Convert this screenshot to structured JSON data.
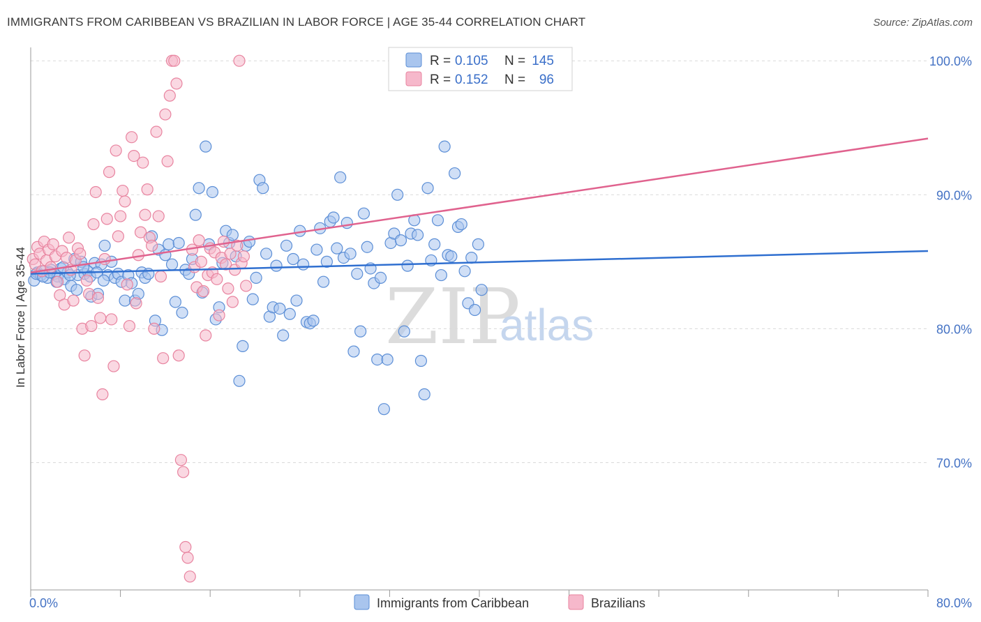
{
  "header": {
    "title": "IMMIGRANTS FROM CARIBBEAN VS BRAZILIAN IN LABOR FORCE | AGE 35-44 CORRELATION CHART",
    "source": "Source: ZipAtlas.com"
  },
  "watermark": {
    "part1": "ZIP",
    "part2": "atlas"
  },
  "legend_top": {
    "rows": [
      {
        "r_label": "R =",
        "r_value": "0.105",
        "n_label": "N =",
        "n_value": "145"
      },
      {
        "r_label": "R =",
        "r_value": "0.152",
        "n_label": "N =",
        "n_value": "96"
      }
    ]
  },
  "colors": {
    "blue_fill": "#a9c5ee",
    "blue_stroke": "#5b8ed6",
    "blue_line": "#2f6fd0",
    "pink_fill": "#f6b8cb",
    "pink_stroke": "#e8839f",
    "pink_line": "#e0628e",
    "grid": "#d9d9d9",
    "axis_text": "#4472c4"
  },
  "chart_data": {
    "type": "scatter",
    "title": "IMMIGRANTS FROM CARIBBEAN VS BRAZILIAN IN LABOR FORCE | AGE 35-44 CORRELATION CHART",
    "xlabel": "",
    "ylabel": "In Labor Force | Age 35-44",
    "xlim": [
      0,
      80
    ],
    "ylim": [
      60.5,
      101.0
    ],
    "x_tick_labels": [
      "0.0%",
      "80.0%"
    ],
    "y_ticks": [
      70,
      80,
      90,
      100
    ],
    "y_tick_labels": [
      "70.0%",
      "80.0%",
      "90.0%",
      "100.0%"
    ],
    "series": [
      {
        "name": "Immigrants from Caribbean",
        "R": 0.105,
        "N": 145,
        "trend": {
          "x": [
            0,
            80
          ],
          "y": [
            84.1,
            85.8
          ]
        },
        "points": [
          [
            0.3,
            83.6
          ],
          [
            0.6,
            84.2
          ],
          [
            0.9,
            84.0
          ],
          [
            1.2,
            84.3
          ],
          [
            1.5,
            83.8
          ],
          [
            1.8,
            84.4
          ],
          [
            2.1,
            84.1
          ],
          [
            2.4,
            83.9
          ],
          [
            2.7,
            84.5
          ],
          [
            3.0,
            83.7
          ],
          [
            3.3,
            84.2
          ],
          [
            3.6,
            83.2
          ],
          [
            3.9,
            85.2
          ],
          [
            4.2,
            84.0
          ],
          [
            4.5,
            85.0
          ],
          [
            4.8,
            84.1
          ],
          [
            5.1,
            84.3
          ],
          [
            5.4,
            82.4
          ],
          [
            5.7,
            84.9
          ],
          [
            6.0,
            82.6
          ],
          [
            6.3,
            84.8
          ],
          [
            6.6,
            86.2
          ],
          [
            6.9,
            84.0
          ],
          [
            7.2,
            85.0
          ],
          [
            7.5,
            83.8
          ],
          [
            7.8,
            84.1
          ],
          [
            8.1,
            83.5
          ],
          [
            8.4,
            82.1
          ],
          [
            8.7,
            84.0
          ],
          [
            9.0,
            83.4
          ],
          [
            9.3,
            82.1
          ],
          [
            9.6,
            82.6
          ],
          [
            9.9,
            84.2
          ],
          [
            10.2,
            83.8
          ],
          [
            10.5,
            84.1
          ],
          [
            10.8,
            86.9
          ],
          [
            11.1,
            80.6
          ],
          [
            11.4,
            85.9
          ],
          [
            11.7,
            79.9
          ],
          [
            12.0,
            85.5
          ],
          [
            12.3,
            86.3
          ],
          [
            12.6,
            84.8
          ],
          [
            12.9,
            82.0
          ],
          [
            13.2,
            86.4
          ],
          [
            13.5,
            81.2
          ],
          [
            13.8,
            84.4
          ],
          [
            14.1,
            84.1
          ],
          [
            14.4,
            85.2
          ],
          [
            14.7,
            88.5
          ],
          [
            15.0,
            90.5
          ],
          [
            15.3,
            82.7
          ],
          [
            15.6,
            93.6
          ],
          [
            15.9,
            86.3
          ],
          [
            16.2,
            90.2
          ],
          [
            16.5,
            80.7
          ],
          [
            16.8,
            81.6
          ],
          [
            17.1,
            84.9
          ],
          [
            17.4,
            87.3
          ],
          [
            17.7,
            86.4
          ],
          [
            18.0,
            87.0
          ],
          [
            18.3,
            85.4
          ],
          [
            18.6,
            76.1
          ],
          [
            18.9,
            78.7
          ],
          [
            19.2,
            86.2
          ],
          [
            19.5,
            86.5
          ],
          [
            19.8,
            82.2
          ],
          [
            20.1,
            83.8
          ],
          [
            20.4,
            91.1
          ],
          [
            20.7,
            90.5
          ],
          [
            21.0,
            85.6
          ],
          [
            21.3,
            80.9
          ],
          [
            21.6,
            81.6
          ],
          [
            21.9,
            84.7
          ],
          [
            22.2,
            81.5
          ],
          [
            22.5,
            79.5
          ],
          [
            22.8,
            86.2
          ],
          [
            23.1,
            81.1
          ],
          [
            23.4,
            85.2
          ],
          [
            23.7,
            82.1
          ],
          [
            24.0,
            87.3
          ],
          [
            24.3,
            84.8
          ],
          [
            24.6,
            80.5
          ],
          [
            24.9,
            80.4
          ],
          [
            25.2,
            80.6
          ],
          [
            25.5,
            85.9
          ],
          [
            25.8,
            87.5
          ],
          [
            26.1,
            83.5
          ],
          [
            26.4,
            85.0
          ],
          [
            26.7,
            88.0
          ],
          [
            27.0,
            88.3
          ],
          [
            27.3,
            86.0
          ],
          [
            27.6,
            91.3
          ],
          [
            27.9,
            85.3
          ],
          [
            28.2,
            87.9
          ],
          [
            28.5,
            85.6
          ],
          [
            28.8,
            78.3
          ],
          [
            29.1,
            84.1
          ],
          [
            29.4,
            79.8
          ],
          [
            29.7,
            88.6
          ],
          [
            30.0,
            86.1
          ],
          [
            30.3,
            84.5
          ],
          [
            30.6,
            83.4
          ],
          [
            30.9,
            77.7
          ],
          [
            31.2,
            83.8
          ],
          [
            31.5,
            74.0
          ],
          [
            31.8,
            77.7
          ],
          [
            32.1,
            86.4
          ],
          [
            32.4,
            87.1
          ],
          [
            32.7,
            90.0
          ],
          [
            33.0,
            86.6
          ],
          [
            33.3,
            79.8
          ],
          [
            33.6,
            84.7
          ],
          [
            33.9,
            87.1
          ],
          [
            34.2,
            88.1
          ],
          [
            34.5,
            87.0
          ],
          [
            34.8,
            77.6
          ],
          [
            35.1,
            75.1
          ],
          [
            35.4,
            90.5
          ],
          [
            35.7,
            85.1
          ],
          [
            36.0,
            86.3
          ],
          [
            36.3,
            88.1
          ],
          [
            36.6,
            84.0
          ],
          [
            36.9,
            93.6
          ],
          [
            37.2,
            85.5
          ],
          [
            37.5,
            85.4
          ],
          [
            37.8,
            91.6
          ],
          [
            38.1,
            87.6
          ],
          [
            38.4,
            87.8
          ],
          [
            38.7,
            84.3
          ],
          [
            39.0,
            81.9
          ],
          [
            39.3,
            85.3
          ],
          [
            39.6,
            81.4
          ],
          [
            39.9,
            86.3
          ],
          [
            40.2,
            82.9
          ],
          [
            0.5,
            84.1
          ],
          [
            1.1,
            83.9
          ],
          [
            1.7,
            84.2
          ],
          [
            2.3,
            83.5
          ],
          [
            2.9,
            84.6
          ],
          [
            3.5,
            84.0
          ],
          [
            4.1,
            82.9
          ],
          [
            4.7,
            84.6
          ],
          [
            5.3,
            83.9
          ],
          [
            5.9,
            84.2
          ],
          [
            6.5,
            83.6
          ]
        ]
      },
      {
        "name": "Brazilians",
        "R": 0.152,
        "N": 96,
        "trend": {
          "x": [
            0,
            80
          ],
          "y": [
            84.2,
            94.2
          ]
        },
        "points": [
          [
            0.2,
            85.2
          ],
          [
            0.4,
            84.8
          ],
          [
            0.6,
            86.1
          ],
          [
            0.8,
            85.6
          ],
          [
            1.0,
            84.3
          ],
          [
            1.2,
            86.5
          ],
          [
            1.4,
            85.1
          ],
          [
            1.6,
            85.9
          ],
          [
            1.8,
            84.6
          ],
          [
            2.0,
            86.3
          ],
          [
            2.2,
            85.4
          ],
          [
            2.4,
            83.5
          ],
          [
            2.6,
            82.5
          ],
          [
            2.8,
            85.8
          ],
          [
            3.0,
            81.8
          ],
          [
            3.2,
            85.3
          ],
          [
            3.4,
            86.8
          ],
          [
            3.6,
            84.4
          ],
          [
            3.8,
            82.1
          ],
          [
            4.0,
            85.1
          ],
          [
            4.2,
            86.0
          ],
          [
            4.4,
            85.6
          ],
          [
            4.6,
            80.0
          ],
          [
            4.8,
            78.0
          ],
          [
            5.0,
            83.6
          ],
          [
            5.2,
            82.6
          ],
          [
            5.4,
            80.2
          ],
          [
            5.6,
            87.8
          ],
          [
            5.8,
            90.2
          ],
          [
            6.0,
            82.3
          ],
          [
            6.2,
            80.8
          ],
          [
            6.4,
            75.1
          ],
          [
            6.6,
            85.2
          ],
          [
            6.8,
            88.2
          ],
          [
            7.0,
            91.7
          ],
          [
            7.2,
            80.7
          ],
          [
            7.4,
            77.2
          ],
          [
            7.6,
            93.3
          ],
          [
            7.8,
            86.9
          ],
          [
            8.0,
            88.4
          ],
          [
            8.2,
            90.3
          ],
          [
            8.4,
            89.5
          ],
          [
            8.6,
            83.3
          ],
          [
            8.8,
            80.2
          ],
          [
            9.0,
            94.3
          ],
          [
            9.2,
            92.9
          ],
          [
            9.4,
            81.9
          ],
          [
            9.6,
            85.5
          ],
          [
            9.8,
            87.2
          ],
          [
            10.0,
            92.4
          ],
          [
            10.2,
            88.5
          ],
          [
            10.4,
            90.4
          ],
          [
            10.6,
            86.8
          ],
          [
            10.8,
            86.2
          ],
          [
            11.0,
            80.0
          ],
          [
            11.2,
            94.7
          ],
          [
            11.4,
            88.4
          ],
          [
            11.6,
            83.9
          ],
          [
            11.8,
            77.8
          ],
          [
            12.0,
            96.0
          ],
          [
            12.2,
            92.5
          ],
          [
            12.4,
            97.4
          ],
          [
            12.6,
            100.0
          ],
          [
            12.8,
            100.0
          ],
          [
            13.0,
            98.3
          ],
          [
            13.2,
            78.0
          ],
          [
            13.4,
            70.2
          ],
          [
            13.6,
            69.3
          ],
          [
            13.8,
            63.7
          ],
          [
            14.0,
            62.9
          ],
          [
            14.2,
            61.5
          ],
          [
            14.4,
            85.9
          ],
          [
            14.6,
            84.6
          ],
          [
            14.8,
            83.1
          ],
          [
            15.0,
            86.6
          ],
          [
            15.2,
            85.0
          ],
          [
            15.4,
            82.8
          ],
          [
            15.6,
            79.5
          ],
          [
            15.8,
            84.0
          ],
          [
            16.0,
            86.0
          ],
          [
            16.2,
            84.2
          ],
          [
            16.4,
            85.7
          ],
          [
            16.6,
            83.7
          ],
          [
            16.8,
            81.0
          ],
          [
            17.0,
            85.3
          ],
          [
            17.2,
            86.5
          ],
          [
            17.4,
            84.8
          ],
          [
            17.6,
            83.0
          ],
          [
            17.8,
            85.6
          ],
          [
            18.0,
            82.0
          ],
          [
            18.2,
            84.4
          ],
          [
            18.4,
            86.2
          ],
          [
            18.6,
            100.0
          ],
          [
            18.8,
            84.9
          ],
          [
            19.0,
            85.4
          ],
          [
            19.2,
            83.2
          ]
        ]
      }
    ]
  },
  "legend_bottom": {
    "items": [
      {
        "label": "Immigrants from Caribbean"
      },
      {
        "label": "Brazilians"
      }
    ]
  }
}
